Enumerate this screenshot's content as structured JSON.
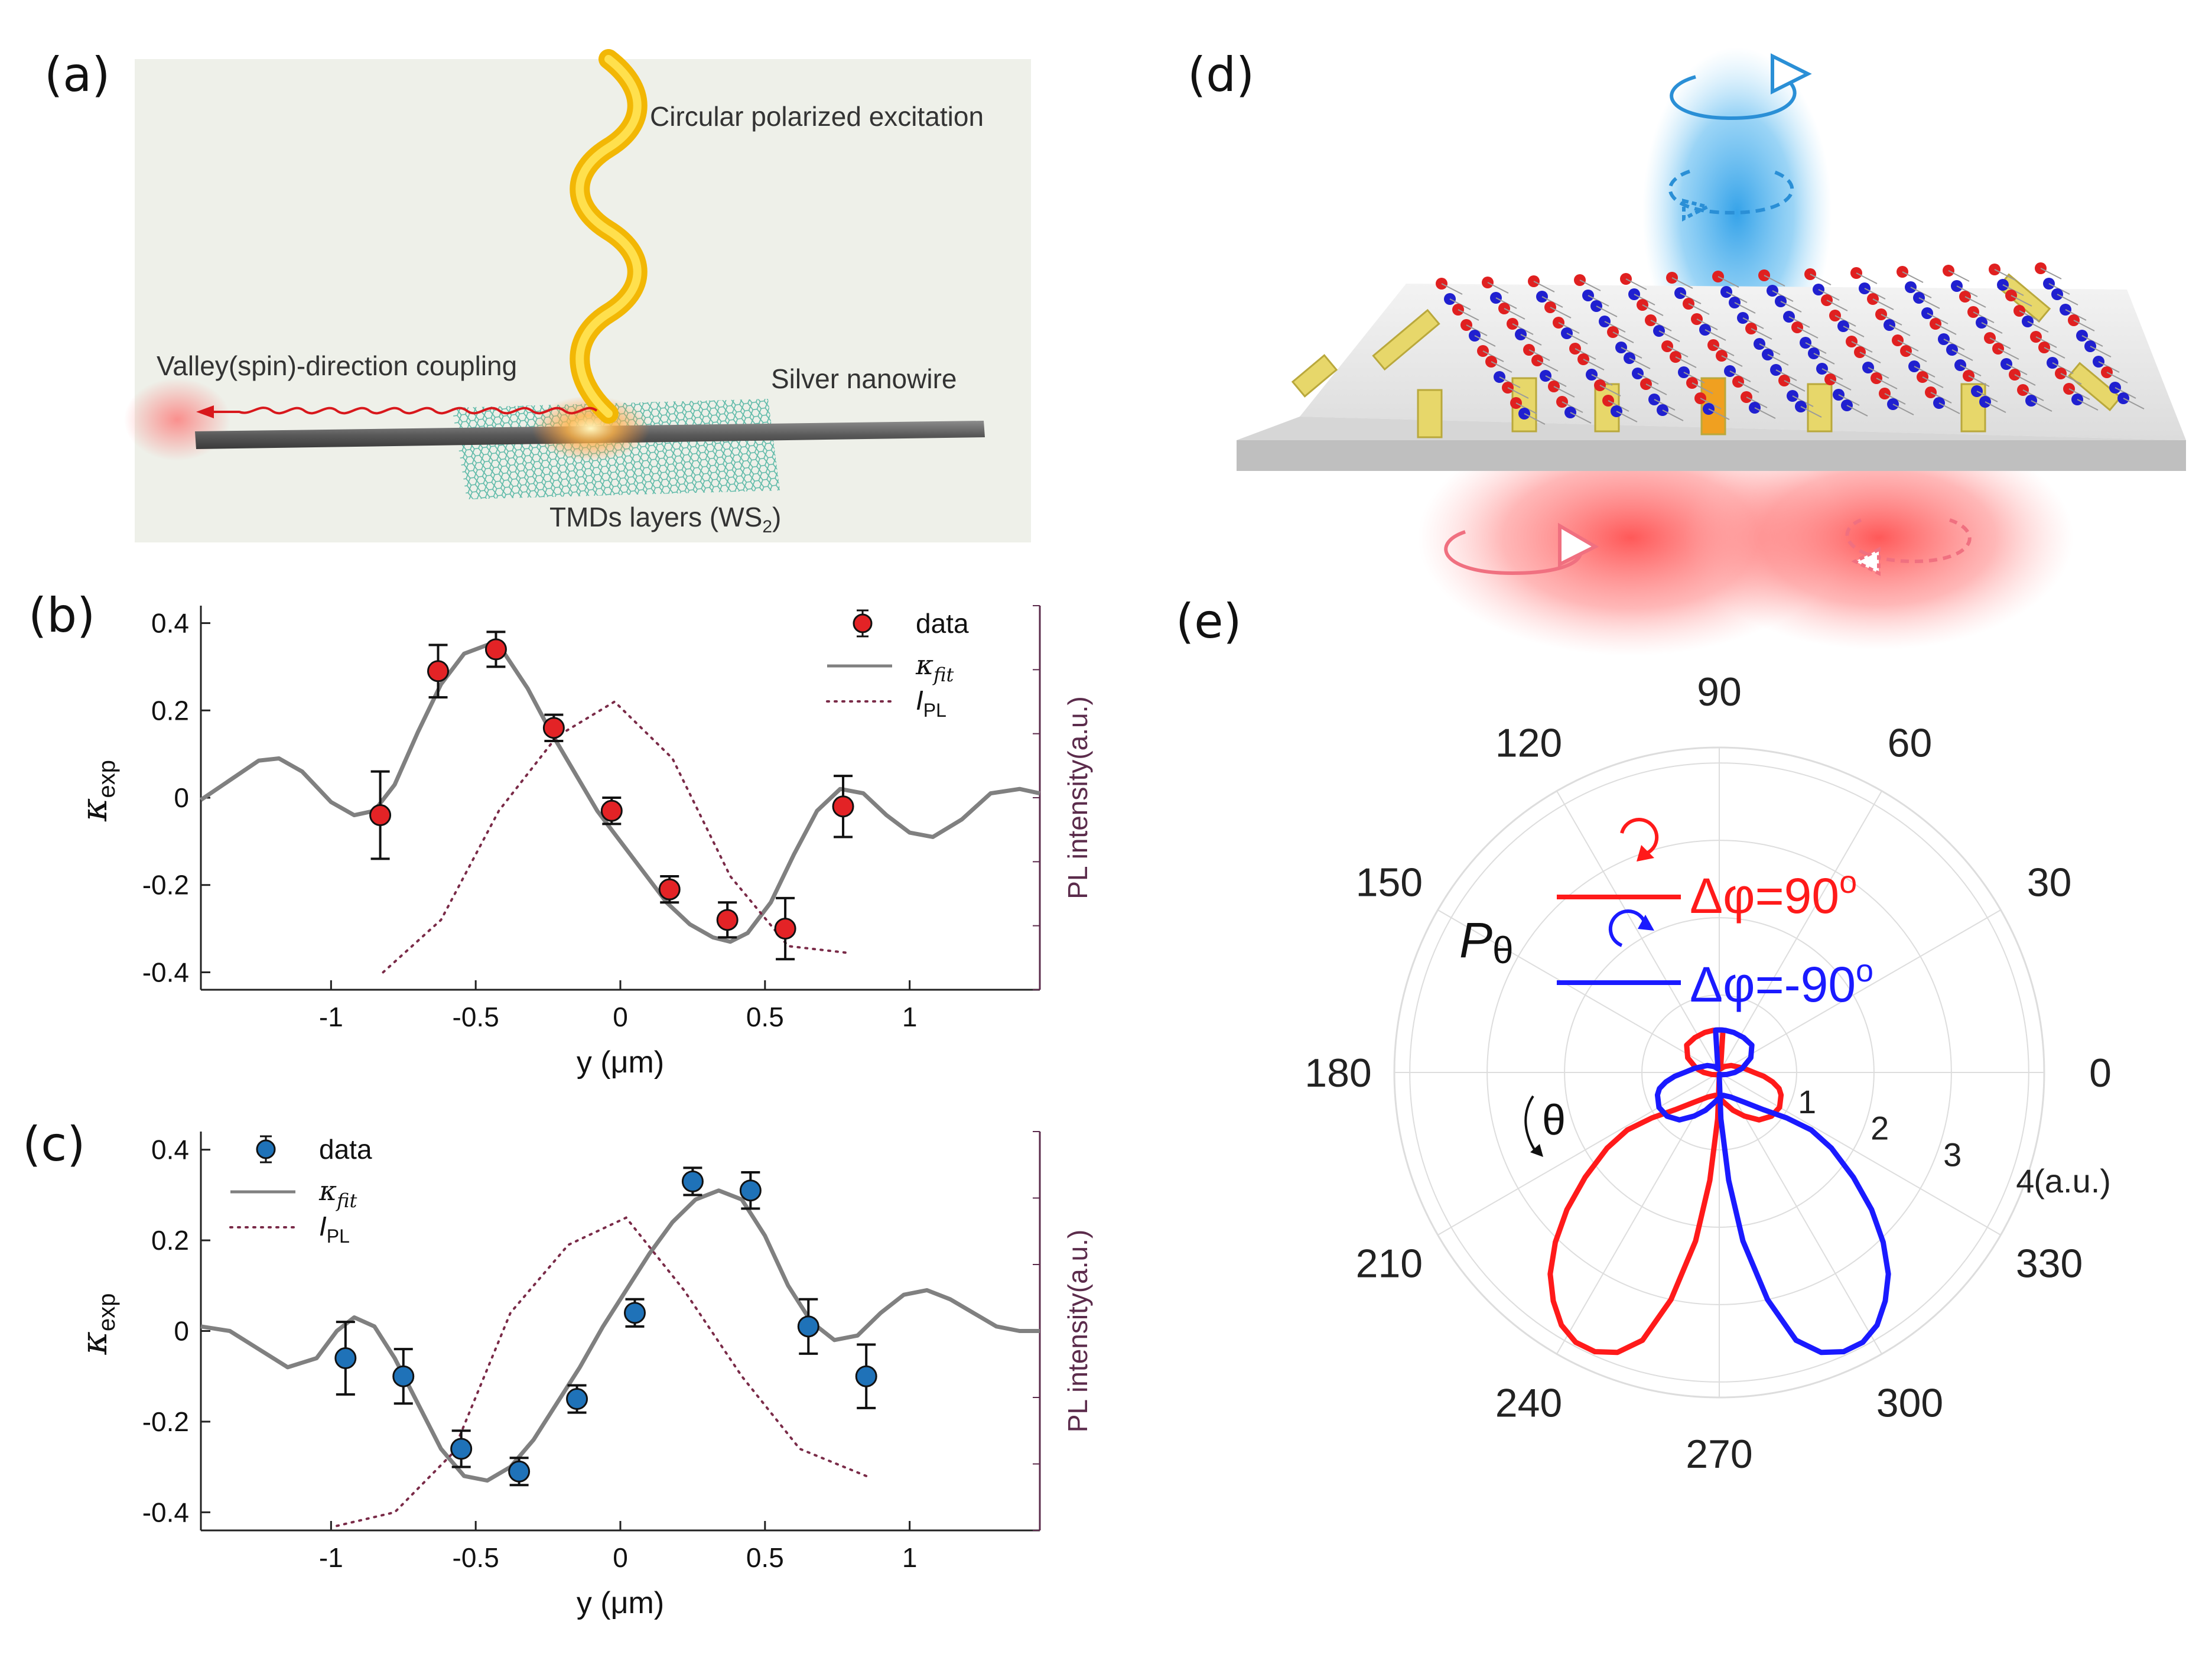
{
  "panels": {
    "a": {
      "label": "(a)",
      "excitation": "Circular polarized excitation",
      "coupling": "Valley(spin)-direction coupling",
      "nanowire": "Silver nanowire",
      "tmd": "TMDs layers (WS",
      "tmd_sub": "2",
      "tmd_end": ")"
    },
    "b": {
      "label": "(b)"
    },
    "c": {
      "label": "(c)"
    },
    "d": {
      "label": "(d)"
    },
    "e": {
      "label": "(e)"
    }
  },
  "colors": {
    "red_point": "#e32326",
    "blue_point": "#1f72b8",
    "fit_line": "#808080",
    "pl_line": "#7a2b48",
    "right_axis": "#5b2b4b",
    "polar_red": "#ff1a1a",
    "polar_blue": "#1a1aff"
  },
  "chart_data": [
    {
      "id": "b",
      "type": "scatter",
      "xlabel": "y (μm)",
      "ylabel_main": "κ",
      "ylabel_sub": "exp",
      "right_label": "PL intensity(a.u.)",
      "xlim": [
        -1.45,
        1.45
      ],
      "ylim": [
        -0.44,
        0.44
      ],
      "xticks": [
        -1,
        -0.5,
        0,
        0.5,
        1
      ],
      "xtick_labels": [
        "-1",
        "-0.5",
        "0",
        "0.5",
        "1"
      ],
      "yticks": [
        -0.4,
        -0.2,
        0,
        0.2,
        0.4
      ],
      "ytick_labels": [
        "-0.4",
        "-0.2",
        "0",
        "0.2",
        "0.4"
      ],
      "legend": {
        "position": "top-right",
        "data": "data",
        "fit_main": "κ",
        "fit_sub": "fit",
        "pl_main": "I",
        "pl_sub": "PL"
      },
      "data": {
        "x": [
          -0.83,
          -0.63,
          -0.43,
          -0.23,
          -0.03,
          0.17,
          0.37,
          0.57,
          0.77
        ],
        "y": [
          -0.04,
          0.29,
          0.34,
          0.16,
          -0.03,
          -0.21,
          -0.28,
          -0.3,
          -0.02
        ],
        "err": [
          0.1,
          0.06,
          0.04,
          0.03,
          0.03,
          0.03,
          0.04,
          0.07,
          0.07
        ]
      },
      "fit": {
        "x": [
          -1.45,
          -1.35,
          -1.25,
          -1.18,
          -1.1,
          -1.0,
          -0.92,
          -0.85,
          -0.78,
          -0.7,
          -0.62,
          -0.54,
          -0.46,
          -0.4,
          -0.32,
          -0.24,
          -0.16,
          -0.08,
          0.0,
          0.08,
          0.16,
          0.24,
          0.32,
          0.38,
          0.44,
          0.52,
          0.6,
          0.68,
          0.76,
          0.84,
          0.92,
          1.0,
          1.08,
          1.18,
          1.28,
          1.38,
          1.45
        ],
        "y": [
          -0.005,
          0.04,
          0.085,
          0.09,
          0.06,
          -0.01,
          -0.04,
          -0.03,
          0.03,
          0.15,
          0.26,
          0.33,
          0.35,
          0.33,
          0.25,
          0.15,
          0.06,
          -0.03,
          -0.1,
          -0.17,
          -0.24,
          -0.29,
          -0.32,
          -0.33,
          -0.31,
          -0.24,
          -0.13,
          -0.03,
          0.02,
          0.01,
          -0.04,
          -0.08,
          -0.09,
          -0.05,
          0.01,
          0.02,
          0.01
        ]
      },
      "pl": {
        "x": [
          -0.82,
          -0.62,
          -0.42,
          -0.22,
          -0.02,
          0.18,
          0.38,
          0.58,
          0.78
        ],
        "y": [
          -0.4,
          -0.28,
          -0.03,
          0.14,
          0.22,
          0.09,
          -0.18,
          -0.34,
          -0.355
        ]
      }
    },
    {
      "id": "c",
      "type": "scatter",
      "xlabel": "y (μm)",
      "ylabel_main": "κ",
      "ylabel_sub": "exp",
      "right_label": "PL intensity(a.u.)",
      "xlim": [
        -1.45,
        1.45
      ],
      "ylim": [
        -0.44,
        0.44
      ],
      "xticks": [
        -1,
        -0.5,
        0,
        0.5,
        1
      ],
      "xtick_labels": [
        "-1",
        "-0.5",
        "0",
        "0.5",
        "1"
      ],
      "yticks": [
        -0.4,
        -0.2,
        0,
        0.2,
        0.4
      ],
      "ytick_labels": [
        "-0.4",
        "-0.2",
        "0",
        "0.2",
        "0.4"
      ],
      "legend": {
        "position": "top-left",
        "data": "data",
        "fit_main": "κ",
        "fit_sub": "fit",
        "pl_main": "I",
        "pl_sub": "PL"
      },
      "data": {
        "x": [
          -0.95,
          -0.75,
          -0.55,
          -0.35,
          -0.15,
          0.05,
          0.25,
          0.45,
          0.65,
          0.85
        ],
        "y": [
          -0.06,
          -0.1,
          -0.26,
          -0.31,
          -0.15,
          0.04,
          0.33,
          0.31,
          0.01,
          -0.1
        ],
        "err": [
          0.08,
          0.06,
          0.04,
          0.03,
          0.03,
          0.03,
          0.03,
          0.04,
          0.06,
          0.07
        ]
      },
      "fit": {
        "x": [
          -1.45,
          -1.35,
          -1.25,
          -1.15,
          -1.05,
          -0.98,
          -0.92,
          -0.85,
          -0.78,
          -0.7,
          -0.62,
          -0.54,
          -0.46,
          -0.38,
          -0.3,
          -0.22,
          -0.14,
          -0.06,
          0.02,
          0.1,
          0.18,
          0.26,
          0.34,
          0.42,
          0.5,
          0.58,
          0.66,
          0.74,
          0.82,
          0.9,
          0.98,
          1.06,
          1.14,
          1.22,
          1.3,
          1.38,
          1.45
        ],
        "y": [
          0.01,
          0.0,
          -0.04,
          -0.08,
          -0.06,
          0.0,
          0.03,
          0.01,
          -0.06,
          -0.16,
          -0.26,
          -0.32,
          -0.33,
          -0.3,
          -0.24,
          -0.16,
          -0.08,
          0.01,
          0.09,
          0.17,
          0.24,
          0.29,
          0.31,
          0.29,
          0.21,
          0.1,
          0.02,
          -0.02,
          -0.01,
          0.04,
          0.08,
          0.09,
          0.07,
          0.04,
          0.01,
          0.0,
          0.0
        ]
      },
      "pl": {
        "x": [
          -0.98,
          -0.78,
          -0.58,
          -0.38,
          -0.18,
          0.02,
          0.22,
          0.42,
          0.62,
          0.85
        ],
        "y": [
          -0.43,
          -0.4,
          -0.27,
          0.04,
          0.19,
          0.25,
          0.09,
          -0.1,
          -0.26,
          -0.32
        ]
      }
    },
    {
      "id": "e",
      "type": "polar",
      "angle_labels": [
        "0",
        "30",
        "60",
        "90",
        "120",
        "150",
        "180",
        "210",
        "240",
        "270",
        "300",
        "330"
      ],
      "angles": [
        0,
        30,
        60,
        90,
        120,
        150,
        180,
        210,
        240,
        270,
        300,
        330
      ],
      "radial_ticks": [
        1,
        2,
        3,
        4
      ],
      "radial_labels": [
        "1",
        "2",
        "3",
        "4"
      ],
      "radial_unit": "(a.u.)",
      "rmax": 4.2,
      "y_label_main": "P",
      "y_label_sub": "θ",
      "theta_label": "θ",
      "series": [
        {
          "name": "Δφ=90°",
          "label_text": "Δφ=90",
          "label_sup": "o",
          "color_key": "polar_red",
          "theta_deg": [
            270,
            268,
            265,
            262,
            258,
            254,
            250,
            246,
            242,
            238,
            234,
            230,
            226,
            222,
            218,
            214,
            212,
            214,
            220,
            230,
            245,
            260,
            270,
            280,
            290,
            300,
            310,
            320,
            330,
            340,
            345,
            350,
            355,
            0,
            10,
            30,
            50,
            70,
            85,
            92,
            98,
            110,
            125,
            140,
            155,
            170,
            180,
            195,
            215,
            240,
            255,
            265,
            270
          ],
          "r": [
            0.05,
            0.6,
            1.4,
            2.2,
            3.0,
            3.6,
            3.85,
            3.95,
            3.95,
            3.85,
            3.65,
            3.4,
            3.05,
            2.65,
            2.2,
            1.75,
            1.4,
            1.05,
            0.75,
            0.5,
            0.35,
            0.3,
            0.33,
            0.4,
            0.52,
            0.65,
            0.8,
            0.88,
            0.9,
            0.85,
            0.8,
            0.7,
            0.58,
            0.45,
            0.32,
            0.18,
            0.1,
            0.05,
            0.55,
            0.55,
            0.55,
            0.55,
            0.55,
            0.55,
            0.45,
            0.3,
            0.2,
            0.1,
            0.05,
            0.03,
            0.02,
            0.02,
            0.05
          ]
        },
        {
          "name": "Δφ=-90°",
          "label_text": "Δφ=-90",
          "label_sup": "o",
          "color_key": "polar_blue",
          "theta_deg": [
            270,
            272,
            275,
            278,
            282,
            286,
            290,
            294,
            298,
            302,
            306,
            310,
            314,
            318,
            322,
            326,
            328,
            326,
            320,
            310,
            295,
            280,
            270,
            260,
            250,
            240,
            230,
            220,
            210,
            200,
            195,
            190,
            185,
            180,
            170,
            150,
            130,
            110,
            95,
            88,
            82,
            70,
            55,
            40,
            25,
            10,
            0,
            345,
            325,
            300,
            285,
            275,
            270
          ],
          "r": [
            0.05,
            0.6,
            1.4,
            2.2,
            3.0,
            3.6,
            3.85,
            3.95,
            3.95,
            3.85,
            3.65,
            3.4,
            3.05,
            2.65,
            2.2,
            1.75,
            1.4,
            1.05,
            0.75,
            0.5,
            0.35,
            0.3,
            0.33,
            0.4,
            0.52,
            0.65,
            0.8,
            0.88,
            0.9,
            0.85,
            0.8,
            0.7,
            0.58,
            0.45,
            0.32,
            0.18,
            0.1,
            0.05,
            0.55,
            0.55,
            0.55,
            0.55,
            0.55,
            0.55,
            0.45,
            0.3,
            0.2,
            0.1,
            0.05,
            0.03,
            0.02,
            0.02,
            0.05
          ]
        }
      ]
    }
  ]
}
